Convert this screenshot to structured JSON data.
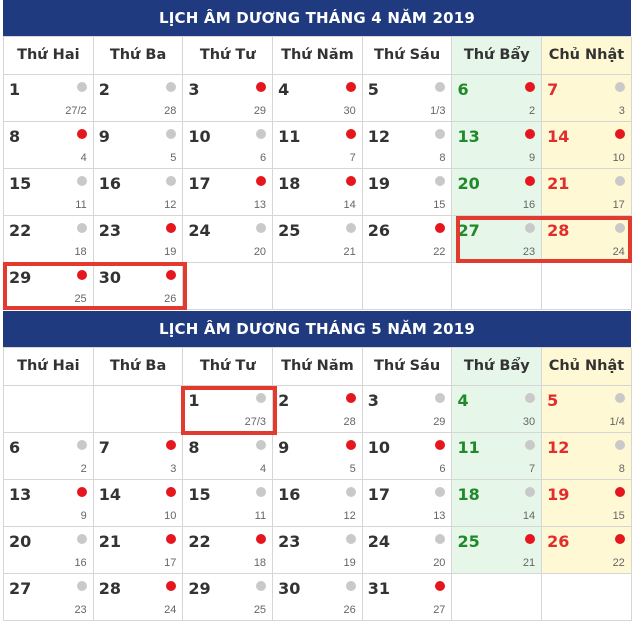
{
  "weekdays": [
    "Thứ Hai",
    "Thứ Ba",
    "Thứ Tư",
    "Thứ Năm",
    "Thứ Sáu",
    "Thứ Bẩy",
    "Chủ Nhật"
  ],
  "colors": {
    "header_bg": "#1f3a7f",
    "weekend_sat": "#1f8a2a",
    "weekend_sun": "#e02d2d",
    "dot_red": "#e4171e",
    "dot_gray": "#c9c9c9",
    "highlight": "#e33a2f"
  },
  "calendars": [
    {
      "title": "LỊCH ÂM DƯƠNG THÁNG 4 NĂM 2019",
      "weeks": [
        [
          {
            "s": "1",
            "l": "27/2",
            "d": "gray"
          },
          {
            "s": "2",
            "l": "28",
            "d": "gray"
          },
          {
            "s": "3",
            "l": "29",
            "d": "red"
          },
          {
            "s": "4",
            "l": "30",
            "d": "red"
          },
          {
            "s": "5",
            "l": "1/3",
            "d": "gray"
          },
          {
            "s": "6",
            "l": "2",
            "d": "red"
          },
          {
            "s": "7",
            "l": "3",
            "d": "gray"
          }
        ],
        [
          {
            "s": "8",
            "l": "4",
            "d": "red"
          },
          {
            "s": "9",
            "l": "5",
            "d": "gray"
          },
          {
            "s": "10",
            "l": "6",
            "d": "gray"
          },
          {
            "s": "11",
            "l": "7",
            "d": "red"
          },
          {
            "s": "12",
            "l": "8",
            "d": "gray"
          },
          {
            "s": "13",
            "l": "9",
            "d": "red"
          },
          {
            "s": "14",
            "l": "10",
            "d": "red"
          }
        ],
        [
          {
            "s": "15",
            "l": "11",
            "d": "gray"
          },
          {
            "s": "16",
            "l": "12",
            "d": "gray"
          },
          {
            "s": "17",
            "l": "13",
            "d": "red"
          },
          {
            "s": "18",
            "l": "14",
            "d": "red"
          },
          {
            "s": "19",
            "l": "15",
            "d": "gray"
          },
          {
            "s": "20",
            "l": "16",
            "d": "red"
          },
          {
            "s": "21",
            "l": "17",
            "d": "gray"
          }
        ],
        [
          {
            "s": "22",
            "l": "18",
            "d": "gray"
          },
          {
            "s": "23",
            "l": "19",
            "d": "red"
          },
          {
            "s": "24",
            "l": "20",
            "d": "gray"
          },
          {
            "s": "25",
            "l": "21",
            "d": "gray"
          },
          {
            "s": "26",
            "l": "22",
            "d": "red"
          },
          {
            "s": "27",
            "l": "23",
            "d": "gray"
          },
          {
            "s": "28",
            "l": "24",
            "d": "gray"
          }
        ],
        [
          {
            "s": "29",
            "l": "25",
            "d": "red"
          },
          {
            "s": "30",
            "l": "26",
            "d": "red"
          },
          null,
          null,
          null,
          null,
          null
        ]
      ]
    },
    {
      "title": "LỊCH ÂM DƯƠNG THÁNG 5 NĂM 2019",
      "weeks": [
        [
          null,
          null,
          {
            "s": "1",
            "l": "27/3",
            "d": "gray"
          },
          {
            "s": "2",
            "l": "28",
            "d": "red"
          },
          {
            "s": "3",
            "l": "29",
            "d": "gray"
          },
          {
            "s": "4",
            "l": "30",
            "d": "gray"
          },
          {
            "s": "5",
            "l": "1/4",
            "d": "gray"
          }
        ],
        [
          {
            "s": "6",
            "l": "2",
            "d": "gray"
          },
          {
            "s": "7",
            "l": "3",
            "d": "red"
          },
          {
            "s": "8",
            "l": "4",
            "d": "gray"
          },
          {
            "s": "9",
            "l": "5",
            "d": "red"
          },
          {
            "s": "10",
            "l": "6",
            "d": "red"
          },
          {
            "s": "11",
            "l": "7",
            "d": "gray"
          },
          {
            "s": "12",
            "l": "8",
            "d": "gray"
          }
        ],
        [
          {
            "s": "13",
            "l": "9",
            "d": "red"
          },
          {
            "s": "14",
            "l": "10",
            "d": "red"
          },
          {
            "s": "15",
            "l": "11",
            "d": "gray"
          },
          {
            "s": "16",
            "l": "12",
            "d": "gray"
          },
          {
            "s": "17",
            "l": "13",
            "d": "gray"
          },
          {
            "s": "18",
            "l": "14",
            "d": "gray"
          },
          {
            "s": "19",
            "l": "15",
            "d": "red"
          }
        ],
        [
          {
            "s": "20",
            "l": "16",
            "d": "gray"
          },
          {
            "s": "21",
            "l": "17",
            "d": "red"
          },
          {
            "s": "22",
            "l": "18",
            "d": "red"
          },
          {
            "s": "23",
            "l": "19",
            "d": "gray"
          },
          {
            "s": "24",
            "l": "20",
            "d": "gray"
          },
          {
            "s": "25",
            "l": "21",
            "d": "red"
          },
          {
            "s": "26",
            "l": "22",
            "d": "red"
          }
        ],
        [
          {
            "s": "27",
            "l": "23",
            "d": "gray"
          },
          {
            "s": "28",
            "l": "24",
            "d": "red"
          },
          {
            "s": "29",
            "l": "25",
            "d": "gray"
          },
          {
            "s": "30",
            "l": "26",
            "d": "gray"
          },
          {
            "s": "31",
            "l": "27",
            "d": "red"
          },
          null,
          null
        ]
      ]
    }
  ]
}
